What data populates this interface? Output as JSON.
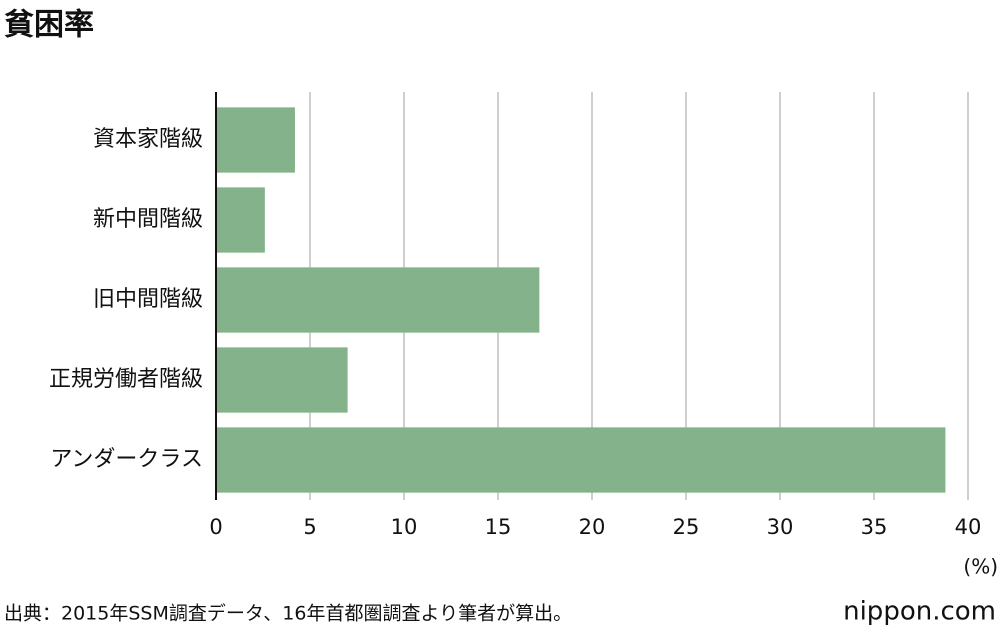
{
  "chart_data": {
    "type": "barh",
    "title": "貧困率",
    "categories": [
      "資本家階級",
      "新中間階級",
      "旧中間階級",
      "正規労働者階級",
      "アンダークラス"
    ],
    "values": [
      4.2,
      2.6,
      17.2,
      7.0,
      38.8
    ],
    "color": "#84b28a",
    "xlim": [
      0,
      40
    ],
    "xticks": [
      0,
      5,
      10,
      15,
      20,
      25,
      30,
      35,
      40
    ],
    "grid": true,
    "x_unit": "(%)",
    "source": "出典：2015年SSM調査データ、16年首都圏調査より筆者が算出。",
    "brand": "nippon.com"
  }
}
